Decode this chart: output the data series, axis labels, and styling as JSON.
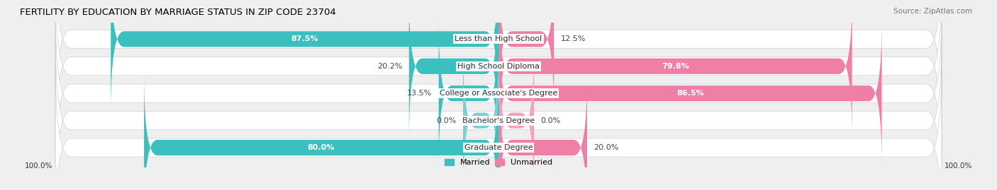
{
  "title": "FERTILITY BY EDUCATION BY MARRIAGE STATUS IN ZIP CODE 23704",
  "source": "Source: ZipAtlas.com",
  "categories": [
    "Less than High School",
    "High School Diploma",
    "College or Associate's Degree",
    "Bachelor's Degree",
    "Graduate Degree"
  ],
  "married": [
    87.5,
    20.2,
    13.5,
    0.0,
    80.0
  ],
  "unmarried": [
    12.5,
    79.8,
    86.5,
    0.0,
    20.0
  ],
  "married_color": "#3bbfbf",
  "unmarried_color": "#f07fa8",
  "married_zero_color": "#7dd0d0",
  "unmarried_zero_color": "#f5a0be",
  "bg_color": "#efefef",
  "title_fontsize": 9.5,
  "source_fontsize": 7.5,
  "label_fontsize": 8,
  "value_fontsize": 8,
  "tick_fontsize": 7.5,
  "min_bar_width": 8.0,
  "axis_label_left": "100.0%",
  "axis_label_right": "100.0%"
}
